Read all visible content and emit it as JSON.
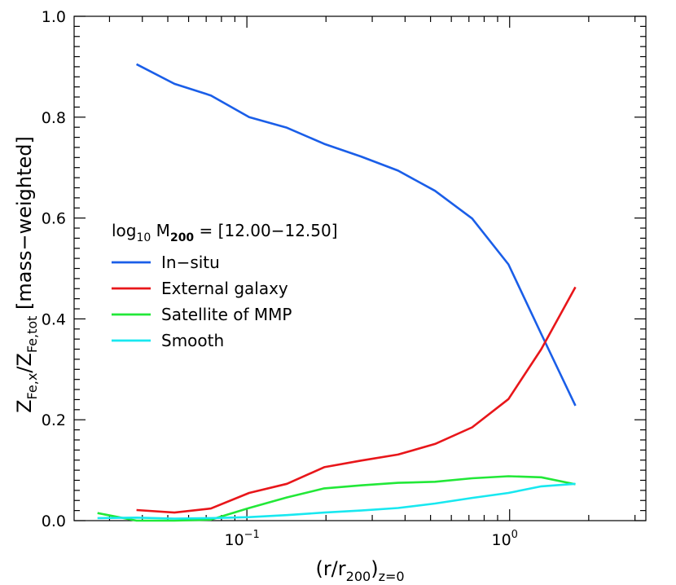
{
  "chart_data": {
    "type": "line",
    "xscale": "log",
    "xlim": [
      0.022,
      3.3
    ],
    "ylim": [
      0.0,
      1.0
    ],
    "x_ticks": [
      {
        "value": 0.1,
        "base": "10",
        "exp": "−1"
      },
      {
        "value": 1.0,
        "base": "10",
        "exp": "0"
      }
    ],
    "y_ticks": [
      "0.0",
      "0.2",
      "0.4",
      "0.6",
      "0.8",
      "1.0"
    ],
    "xlabel": {
      "pre": "(r/r",
      "sub1": "200",
      "mid": ")",
      "sub2": "z=0"
    },
    "ylabel": {
      "z1": "Z",
      "sub1": "Fe,x",
      "slash": "/Z",
      "sub2": "Fe,tot",
      "suffix": " [mass−weighted]"
    },
    "legend_title": {
      "log": "log",
      "log_sub": "10",
      "m": " M",
      "m_sub": "200",
      "rest": " = [12.00−12.50]"
    },
    "series": [
      {
        "name": "In−situ",
        "color": "#1a5ee8",
        "x": [
          0.038,
          0.053,
          0.073,
          0.102,
          0.142,
          0.197,
          0.272,
          0.376,
          0.52,
          0.72,
          0.99,
          1.32,
          1.78
        ],
        "y": [
          0.905,
          0.866,
          0.843,
          0.8,
          0.779,
          0.747,
          0.722,
          0.694,
          0.654,
          0.599,
          0.508,
          0.37,
          0.228
        ]
      },
      {
        "name": "External galaxy",
        "color": "#e8161a",
        "x": [
          0.038,
          0.053,
          0.073,
          0.102,
          0.142,
          0.197,
          0.272,
          0.376,
          0.52,
          0.72,
          0.99,
          1.32,
          1.78
        ],
        "y": [
          0.021,
          0.016,
          0.024,
          0.055,
          0.073,
          0.106,
          0.119,
          0.131,
          0.152,
          0.185,
          0.241,
          0.34,
          0.463
        ]
      },
      {
        "name": "Satellite of MMP",
        "color": "#22e838",
        "x": [
          0.027,
          0.038,
          0.053,
          0.073,
          0.102,
          0.142,
          0.197,
          0.272,
          0.376,
          0.52,
          0.72,
          0.99,
          1.32,
          1.78
        ],
        "y": [
          0.015,
          0.0,
          0.0,
          0.002,
          0.025,
          0.046,
          0.064,
          0.07,
          0.075,
          0.077,
          0.084,
          0.088,
          0.086,
          0.072
        ]
      },
      {
        "name": "Smooth",
        "color": "#18e8f0",
        "x": [
          0.027,
          0.038,
          0.053,
          0.073,
          0.102,
          0.142,
          0.197,
          0.272,
          0.376,
          0.52,
          0.72,
          0.99,
          1.32,
          1.78
        ],
        "y": [
          0.005,
          0.006,
          0.004,
          0.005,
          0.007,
          0.011,
          0.016,
          0.02,
          0.025,
          0.034,
          0.045,
          0.055,
          0.068,
          0.073
        ]
      }
    ]
  }
}
